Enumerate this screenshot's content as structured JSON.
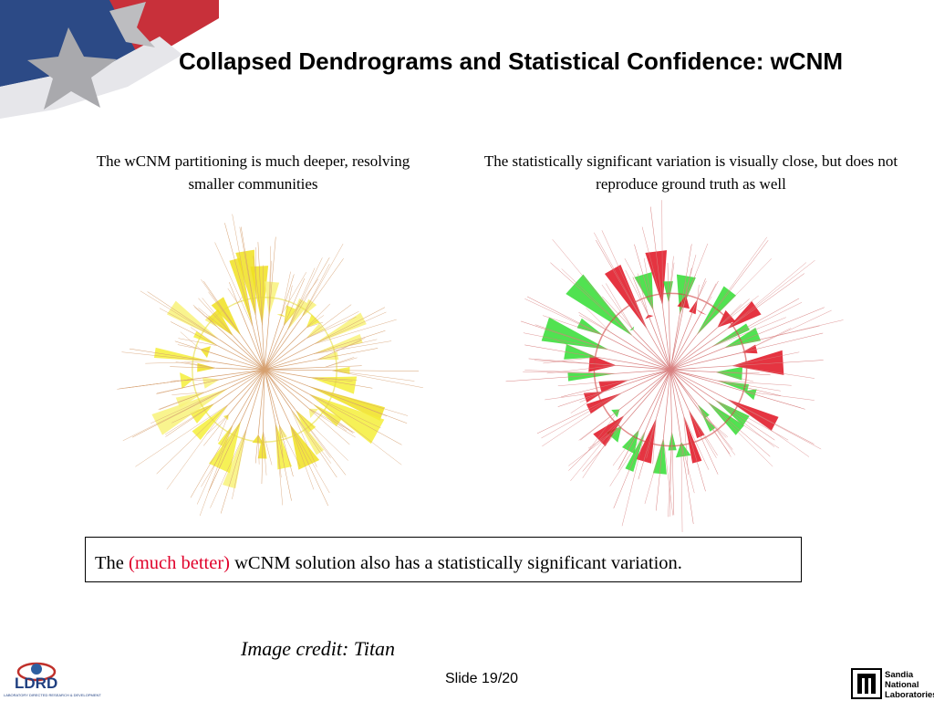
{
  "slide": {
    "title": "Collapsed Dendrograms and Statistical Confidence: wCNM",
    "left_caption": "The wCNM partitioning is much deeper, resolving smaller communities",
    "right_caption": "The statistically significant variation is visually close, but does not reproduce ground truth as well",
    "note": {
      "prefix": "The ",
      "highlight": "(much better)",
      "suffix": " wCNM solution also has a statistically significant variation."
    },
    "credit": "Image credit: Titan",
    "slide_number": "Slide 19/20"
  },
  "logos": {
    "ldrd": {
      "text": "LDRD",
      "subtext": "LABORATORY DIRECTED RESEARCH & DEVELOPMENT"
    },
    "sandia": {
      "lines": [
        "Sandia",
        "National",
        "Laboratories"
      ]
    }
  },
  "colors": {
    "highlight": "#e0002a",
    "dendro_left_fill": "#f5ee3a",
    "dendro_left_edge": "#d6a070",
    "dendro_right_green": "#33dd33",
    "dendro_right_red": "#e01020"
  }
}
